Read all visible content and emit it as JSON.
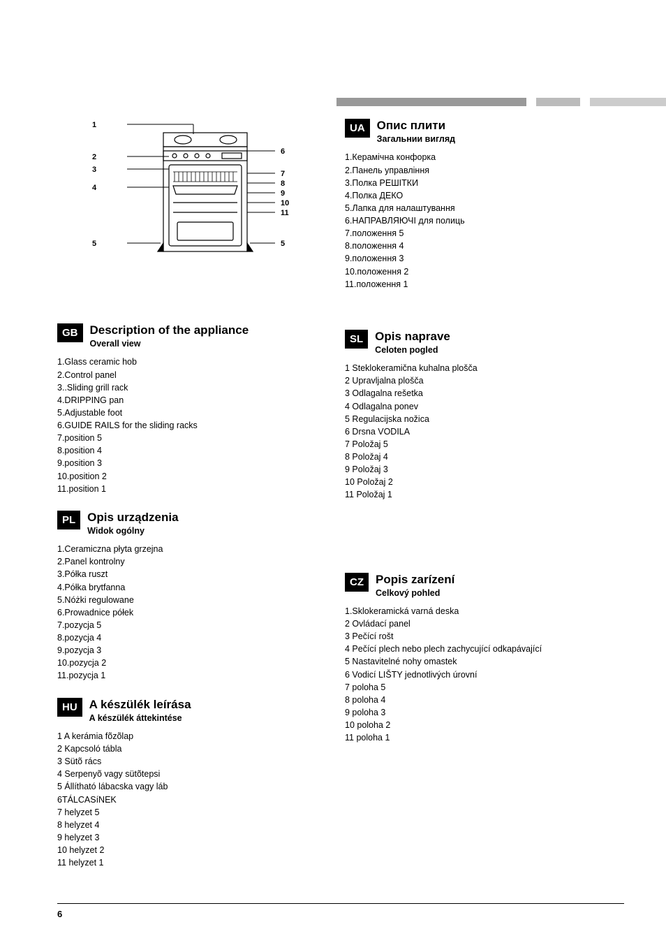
{
  "page_number": "6",
  "diagram": {
    "left_labels": [
      "1",
      "2",
      "3",
      "4",
      "5"
    ],
    "right_labels": [
      "6",
      "7",
      "8",
      "9",
      "10",
      "11",
      "5"
    ]
  },
  "blocks": {
    "gb": {
      "badge": "GB",
      "title": "Description of the appliance",
      "subtitle": "Overall view",
      "items": [
        "1.Glass ceramic hob",
        " 2.Control panel",
        " 3..Sliding grill rack",
        "4.DRIPPING pan",
        "5.Adjustable foot",
        "6.GUIDE RAILS for the sliding racks",
        "7.position 5",
        "8.position 4",
        "9.position 3",
        "10.position 2",
        "11.position 1"
      ]
    },
    "pl": {
      "badge": "PL",
      "title": "Opis urządzenia",
      "subtitle": "Widok  ogólny",
      "items": [
        "1.Ceramiczna płyta grzejna",
        "2.Panel kontrolny",
        "3.Półka ruszt",
        "4.Półka  brytfanna",
        "5.Nóżki  regulowane",
        "6.Prowadnice  półek",
        "7.pozycja 5",
        "8.pozycja 4",
        "9.pozycja 3",
        "10.pozycja 2",
        "11.pozycja 1"
      ]
    },
    "hu": {
      "badge": "HU",
      "title": "A készülék leírása",
      "subtitle": "A készülék áttekintése",
      "items": [
        "1 A  kerámia fõzõlap",
        "2 Kapcsoló tábla",
        "3 Sütõ rács",
        "4 Serpenyõ vagy sütõtepsi",
        "5 Állítható lábacska vagy láb",
        "6TÁLCASíNEK",
        "7 helyzet 5",
        "8 helyzet 4",
        "9 helyzet 3",
        "10 helyzet 2",
        "11 helyzet 1"
      ]
    },
    "ua": {
      "badge": "UA",
      "title": "Опис плити",
      "subtitle": "Загальнии вигляд",
      "items": [
        "1.Керамічна  конфорка",
        "2.Панель управління",
        "3.Полка РЕШІТКИ",
        "4.Полка ДЕКО",
        "5.Лапка для налаштування",
        "6.НАПРАВЛЯЮЧІ для полиць",
        "7.положення 5",
        "8.положення 4",
        "9.положення 3",
        "10.положення 2",
        "11.положення 1"
      ]
    },
    "sl": {
      "badge": "SL",
      "title": "Opis naprave",
      "subtitle": "Celoten pogled",
      "items": [
        "1  Steklokeramična kuhalna plošča",
        "2 Upravljalna plošča",
        "3 Odlagalna rešetka",
        "4 Odlagalna ponev",
        "5 Regulacijska nožica",
        "6 Drsna VODILA",
        "7 Položaj 5",
        "8 Položaj 4",
        "9 Položaj 3",
        "10 Položaj 2",
        "11 Položaj 1"
      ]
    },
    "cz": {
      "badge": "CZ",
      "title": "Popis zarízení",
      "subtitle": "Celkový pohled",
      "items": [
        "1.Sklokeramická varná deska",
        "2  Ovládací panel",
        "3 Pečící rošt",
        "4 Pečící plech nebo plech zachycující odkapávající",
        "5 Nastavitelné nohy omastek",
        "6  Vodicí LIŠTY jednotlivých úrovní",
        "7  poloha 5",
        "8  poloha 4",
        "9  poloha 3",
        "10 poloha 2",
        "11 poloha 1"
      ]
    }
  }
}
